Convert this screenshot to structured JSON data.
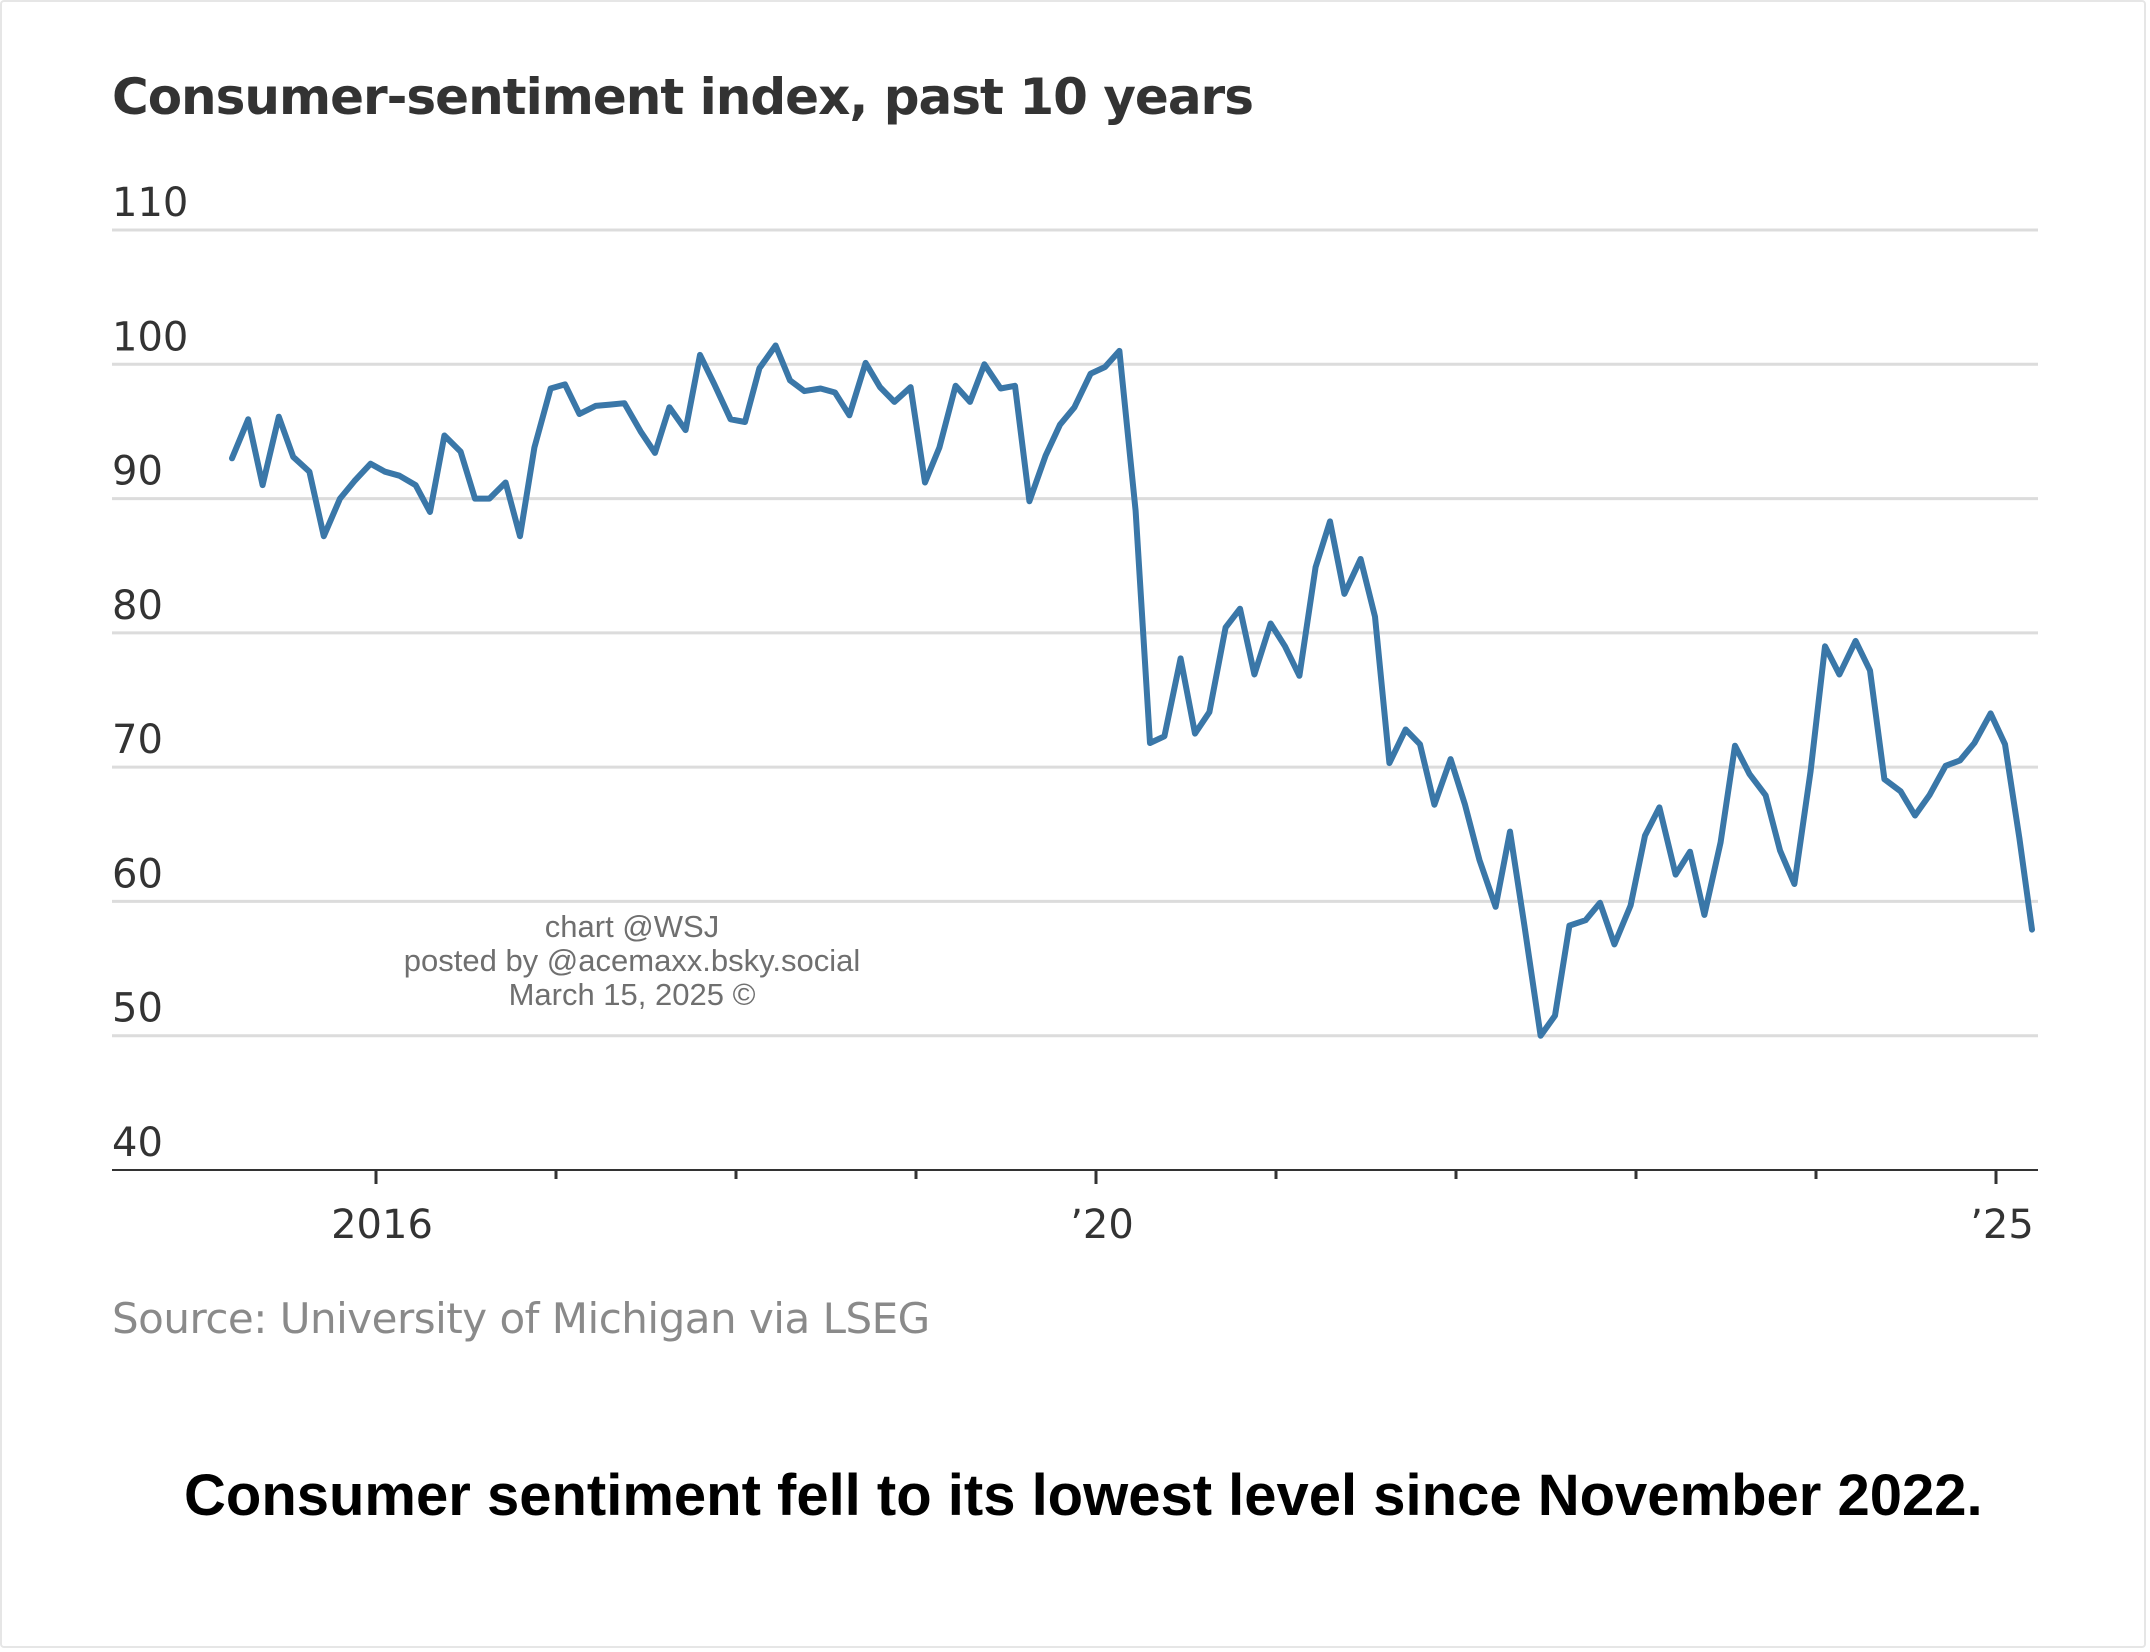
{
  "chart_title": "Consumer-sentiment index, past 10 years",
  "source": "Source: University of Michigan via LSEG",
  "watermark": {
    "line1": "chart @WSJ",
    "line2": "posted by @acemaxx.bsky.social",
    "line3": "March 15, 2025 ©"
  },
  "headline": "Consumer sentiment fell to its lowest level since November 2022.",
  "colors": {
    "line": "#3a77a8",
    "grid": "#dcdcdc",
    "axis": "#333333",
    "text": "#333333"
  },
  "chart_data": {
    "type": "line",
    "title": "Consumer-sentiment index, past 10 years",
    "xlabel": "",
    "ylabel": "",
    "ylim": [
      40,
      110
    ],
    "yticks": [
      40,
      50,
      60,
      70,
      80,
      90,
      100,
      110
    ],
    "x_range": [
      2015.0,
      2025.5
    ],
    "xtick_labels": [
      {
        "x": 2016,
        "label": "2016"
      },
      {
        "x": 2020,
        "label": "’20"
      },
      {
        "x": 2025,
        "label": "’25"
      }
    ],
    "x_minor_ticks": [
      2017,
      2018,
      2019,
      2021,
      2022,
      2023,
      2024
    ],
    "grid": true,
    "legend": "none",
    "series": [
      {
        "x": [
          2015.2,
          2015.29,
          2015.37,
          2015.46,
          2015.54,
          2015.63,
          2015.71,
          2015.8,
          2015.88,
          2015.97,
          2016.05,
          2016.13,
          2016.22,
          2016.3,
          2016.38,
          2016.47,
          2016.55,
          2016.63,
          2016.72,
          2016.8,
          2016.88,
          2016.97,
          2017.05,
          2017.13,
          2017.22,
          2017.3,
          2017.38,
          2017.47,
          2017.55,
          2017.63,
          2017.72,
          2017.8,
          2017.88,
          2017.97,
          2018.05,
          2018.13,
          2018.22,
          2018.3,
          2018.38,
          2018.47,
          2018.55,
          2018.63,
          2018.72,
          2018.8,
          2018.88,
          2018.97,
          2019.05,
          2019.13,
          2019.22,
          2019.3,
          2019.38,
          2019.47,
          2019.55,
          2019.63,
          2019.72,
          2019.8,
          2019.88,
          2019.97,
          2020.05,
          2020.13,
          2020.22,
          2020.3,
          2020.38,
          2020.47,
          2020.55,
          2020.63,
          2020.72,
          2020.8,
          2020.88,
          2020.97,
          2021.05,
          2021.13,
          2021.22,
          2021.3,
          2021.38,
          2021.47,
          2021.55,
          2021.63,
          2021.72,
          2021.8,
          2021.88,
          2021.97,
          2022.05,
          2022.13,
          2022.22,
          2022.3,
          2022.38,
          2022.47,
          2022.55,
          2022.63,
          2022.72,
          2022.8,
          2022.88,
          2022.97,
          2023.05,
          2023.13,
          2023.22,
          2023.3,
          2023.38,
          2023.47,
          2023.55,
          2023.63,
          2023.72,
          2023.8,
          2023.88,
          2023.97,
          2024.05,
          2024.13,
          2024.22,
          2024.3,
          2024.38,
          2024.47,
          2024.55,
          2024.63,
          2024.72,
          2024.8,
          2024.88,
          2024.97,
          2025.05,
          2025.13,
          2025.2
        ],
        "values": [
          93.0,
          95.9,
          91.0,
          96.1,
          93.1,
          92.0,
          87.2,
          90.0,
          91.3,
          92.6,
          92.0,
          91.7,
          91.0,
          89.0,
          94.7,
          93.5,
          90.0,
          90.0,
          91.2,
          87.2,
          93.8,
          98.2,
          98.5,
          96.3,
          96.9,
          97.0,
          97.1,
          95.0,
          93.4,
          96.8,
          95.1,
          100.7,
          98.5,
          95.9,
          95.7,
          99.7,
          101.4,
          98.8,
          98.0,
          98.2,
          97.9,
          96.2,
          100.1,
          98.3,
          97.2,
          98.3,
          91.2,
          93.8,
          98.4,
          97.2,
          100.0,
          98.2,
          98.4,
          89.8,
          93.2,
          95.5,
          96.8,
          99.3,
          99.8,
          101.0,
          89.1,
          71.8,
          72.3,
          78.1,
          72.5,
          74.1,
          80.4,
          81.8,
          76.9,
          80.7,
          79.0,
          76.8,
          84.9,
          88.3,
          82.9,
          85.5,
          81.2,
          70.3,
          72.8,
          71.7,
          67.2,
          70.6,
          67.2,
          63.1,
          59.6,
          65.2,
          58.2,
          50.0,
          51.5,
          58.2,
          58.6,
          59.9,
          56.8,
          59.7,
          64.9,
          67.0,
          62.0,
          63.7,
          59.0,
          64.4,
          71.6,
          69.5,
          67.9,
          63.8,
          61.3,
          69.7,
          79.0,
          76.9,
          79.4,
          77.2,
          69.1,
          68.2,
          66.4,
          67.9,
          70.1,
          70.5,
          71.8,
          74.0,
          71.7,
          64.7,
          57.9
        ]
      }
    ]
  }
}
